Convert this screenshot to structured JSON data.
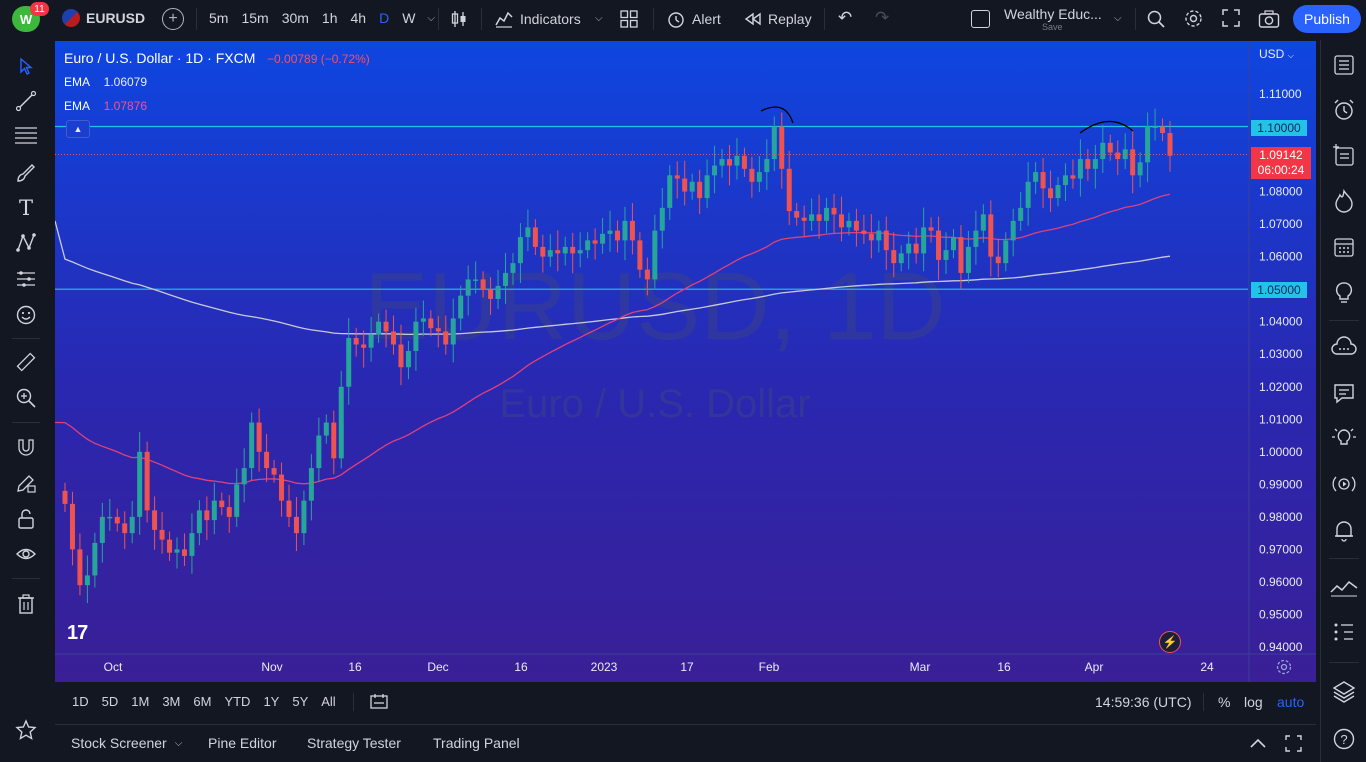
{
  "header": {
    "notif_count": "11",
    "symbol": "EURUSD",
    "intervals": [
      "5m",
      "15m",
      "30m",
      "1h",
      "4h",
      "D",
      "W"
    ],
    "active_interval": "D",
    "indicators_label": "Indicators",
    "alert_label": "Alert",
    "replay_label": "Replay",
    "layout_name": "Wealthy Educ...",
    "layout_save": "Save",
    "publish_label": "Publish"
  },
  "legend": {
    "title": "Euro / U.S. Dollar · 1D · FXCM",
    "change": "−0.00789 (−0.72%)",
    "ema1_label": "EMA",
    "ema1_value": "1.06079",
    "ema2_label": "EMA",
    "ema2_value": "1.07876"
  },
  "watermark": {
    "symbol": "EURUSD, 1D",
    "name": "Euro / U.S. Dollar"
  },
  "price_axis": {
    "currency": "USD",
    "ticks": [
      "1.11000",
      "1.10000",
      "1.09142",
      "1.08000",
      "1.07000",
      "1.06000",
      "1.05000",
      "1.04000",
      "1.03000",
      "1.02000",
      "1.01000",
      "1.00000",
      "0.99000",
      "0.98000",
      "0.97000",
      "0.96000",
      "0.95000",
      "0.94000"
    ],
    "last_price": "1.09142",
    "countdown": "06:00:24",
    "hline1": "1.10000",
    "hline2": "1.05000"
  },
  "time_axis": {
    "labels": [
      "Oct",
      "Nov",
      "16",
      "Dec",
      "16",
      "2023",
      "17",
      "Feb",
      "Mar",
      "16",
      "Apr",
      "24"
    ]
  },
  "bottom": {
    "ranges": [
      "1D",
      "5D",
      "1M",
      "3M",
      "6M",
      "YTD",
      "1Y",
      "5Y",
      "All"
    ],
    "clock": "14:59:36 (UTC)",
    "percent": "%",
    "log": "log",
    "auto": "auto",
    "tabs": [
      "Stock Screener",
      "Pine Editor",
      "Strategy Tester",
      "Trading Panel"
    ]
  },
  "colors": {
    "bull": "#26a69a",
    "bear": "#ef5350",
    "ema_fast": "#e0407a",
    "ema_slow": "#c8cbd6",
    "hline": "#22c3e6",
    "accent": "#2962ff"
  },
  "chart_data": {
    "type": "candlestick",
    "title": "Euro / U.S. Dollar · 1D · FXCM",
    "ylim": [
      0.94,
      1.115
    ],
    "yticks": [
      0.94,
      0.95,
      0.96,
      0.97,
      0.98,
      0.99,
      1.0,
      1.01,
      1.02,
      1.03,
      1.04,
      1.05,
      1.06,
      1.07,
      1.08,
      1.09,
      1.1,
      1.11
    ],
    "xtick_labels": [
      "Oct",
      "Nov",
      "16",
      "Dec",
      "16",
      "2023",
      "17",
      "Feb",
      "Mar",
      "16",
      "Apr",
      "24"
    ],
    "horizontal_lines": [
      1.1,
      1.05
    ],
    "last_price": 1.09142,
    "closes": [
      0.984,
      0.97,
      0.959,
      0.962,
      0.972,
      0.98,
      0.98,
      0.978,
      0.975,
      0.98,
      1.0,
      0.982,
      0.976,
      0.973,
      0.969,
      0.97,
      0.968,
      0.975,
      0.982,
      0.979,
      0.985,
      0.983,
      0.98,
      0.99,
      0.995,
      1.009,
      1.0,
      0.995,
      0.993,
      0.985,
      0.98,
      0.975,
      0.985,
      0.995,
      1.005,
      1.009,
      0.998,
      1.02,
      1.035,
      1.033,
      1.032,
      1.036,
      1.04,
      1.037,
      1.033,
      1.026,
      1.031,
      1.04,
      1.041,
      1.038,
      1.037,
      1.033,
      1.041,
      1.048,
      1.053,
      1.053,
      1.05,
      1.047,
      1.051,
      1.055,
      1.058,
      1.066,
      1.069,
      1.063,
      1.06,
      1.062,
      1.061,
      1.063,
      1.061,
      1.062,
      1.065,
      1.064,
      1.067,
      1.068,
      1.065,
      1.071,
      1.065,
      1.056,
      1.053,
      1.068,
      1.075,
      1.085,
      1.084,
      1.08,
      1.083,
      1.078,
      1.085,
      1.088,
      1.09,
      1.088,
      1.091,
      1.087,
      1.083,
      1.086,
      1.09,
      1.1,
      1.087,
      1.074,
      1.072,
      1.071,
      1.073,
      1.071,
      1.075,
      1.073,
      1.069,
      1.071,
      1.068,
      1.067,
      1.065,
      1.068,
      1.062,
      1.058,
      1.061,
      1.064,
      1.061,
      1.069,
      1.068,
      1.059,
      1.062,
      1.066,
      1.055,
      1.063,
      1.068,
      1.073,
      1.06,
      1.058,
      1.065,
      1.071,
      1.075,
      1.083,
      1.086,
      1.081,
      1.078,
      1.082,
      1.085,
      1.084,
      1.09,
      1.087,
      1.09,
      1.095,
      1.092,
      1.09,
      1.093,
      1.085,
      1.089,
      1.1,
      1.1,
      1.098,
      1.091
    ]
  }
}
